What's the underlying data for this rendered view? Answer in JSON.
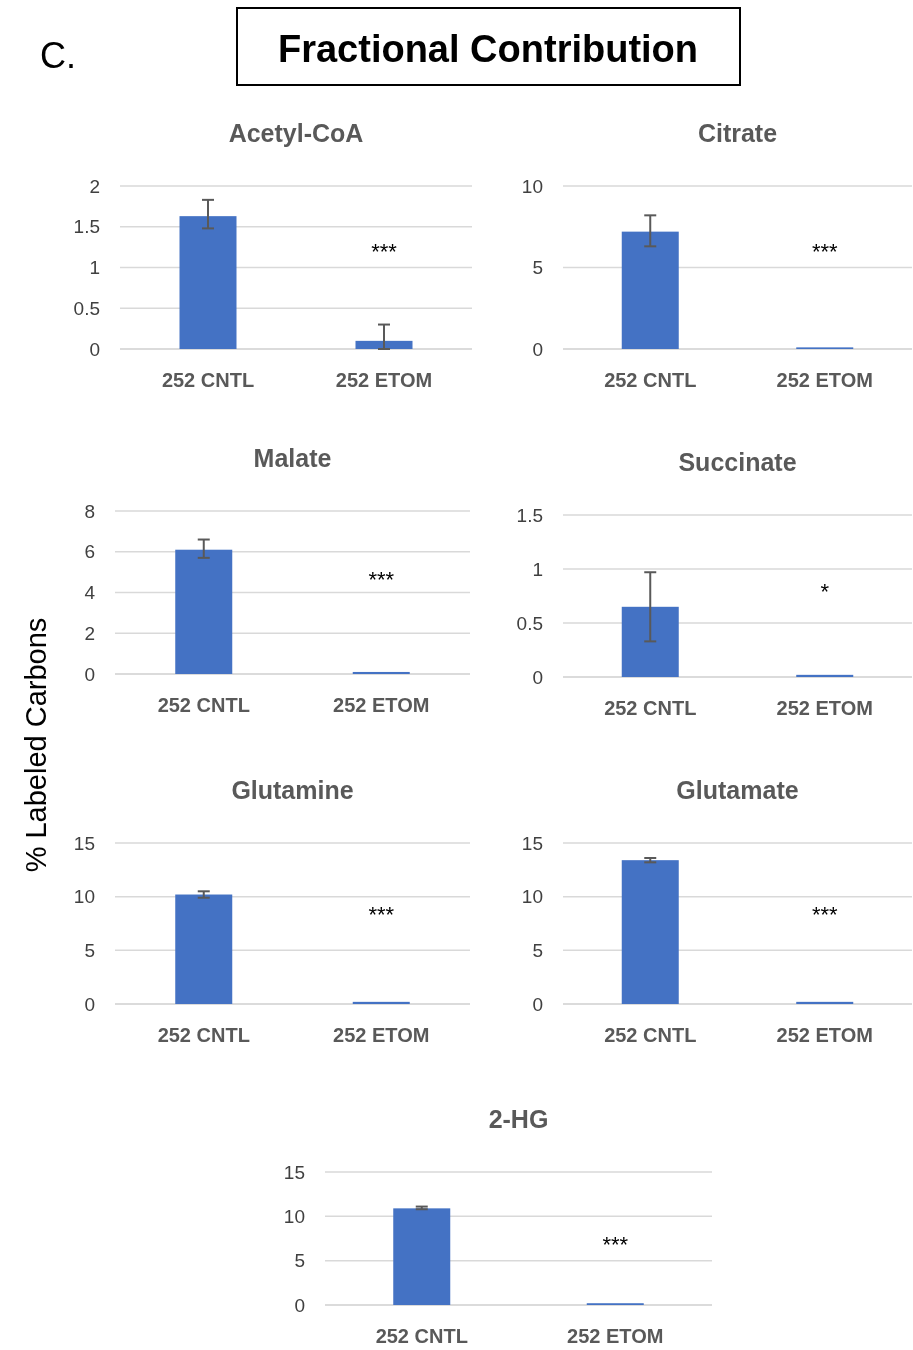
{
  "chart_data": [
    {
      "type": "other",
      "title": "Fractional Contribution",
      "annotations": [
        "C.",
        "% Labeled Carbons"
      ]
    },
    {
      "type": "bar",
      "title": "Acetyl-CoA",
      "categories": [
        "252 CNTL",
        "252 ETOM"
      ],
      "values": [
        1.63,
        0.1
      ],
      "errors": [
        [
          1.48,
          1.83
        ],
        [
          0,
          0.3
        ]
      ],
      "color": "#4472c4",
      "ylim": [
        0,
        2
      ],
      "yticks": [
        0,
        0.5,
        1,
        1.5,
        2
      ],
      "grid": "y",
      "annotations": [
        "***"
      ]
    },
    {
      "type": "bar",
      "title": "Citrate",
      "categories": [
        "252 CNTL",
        "252 ETOM"
      ],
      "values": [
        7.2,
        0.1
      ],
      "errors": [
        [
          6.3,
          8.2
        ],
        null
      ],
      "color": "#4472c4",
      "ylim": [
        0,
        10
      ],
      "yticks": [
        0,
        5,
        10
      ],
      "grid": "y",
      "annotations": [
        "***"
      ]
    },
    {
      "type": "bar",
      "title": "Malate",
      "categories": [
        "252 CNTL",
        "252 ETOM"
      ],
      "values": [
        6.1,
        0.1
      ],
      "errors": [
        [
          5.7,
          6.6
        ],
        null
      ],
      "color": "#4472c4",
      "ylim": [
        0,
        8
      ],
      "yticks": [
        0,
        2,
        4,
        6,
        8
      ],
      "grid": "y",
      "annotations": [
        "***"
      ]
    },
    {
      "type": "bar",
      "title": "Succinate",
      "categories": [
        "252 CNTL",
        "252 ETOM"
      ],
      "values": [
        0.65,
        0.02
      ],
      "errors": [
        [
          0.33,
          0.97
        ],
        null
      ],
      "color": "#4472c4",
      "ylim": [
        0,
        1.5
      ],
      "yticks": [
        0,
        0.5,
        1,
        1.5
      ],
      "grid": "y",
      "annotations": [
        "*"
      ]
    },
    {
      "type": "bar",
      "title": "Glutamine",
      "categories": [
        "252 CNTL",
        "252 ETOM"
      ],
      "values": [
        10.2,
        0.2
      ],
      "errors": [
        [
          9.9,
          10.5
        ],
        null
      ],
      "color": "#4472c4",
      "ylim": [
        0,
        15
      ],
      "yticks": [
        0,
        5,
        10,
        15
      ],
      "grid": "y",
      "annotations": [
        "***"
      ]
    },
    {
      "type": "bar",
      "title": "Glutamate",
      "categories": [
        "252 CNTL",
        "252 ETOM"
      ],
      "values": [
        13.4,
        0.2
      ],
      "errors": [
        [
          13.2,
          13.6
        ],
        null
      ],
      "color": "#4472c4",
      "ylim": [
        0,
        15
      ],
      "yticks": [
        0,
        5,
        10,
        15
      ],
      "grid": "y",
      "annotations": [
        "***"
      ]
    },
    {
      "type": "bar",
      "title": "2-HG",
      "categories": [
        "252 CNTL",
        "252 ETOM"
      ],
      "values": [
        10.9,
        0.2
      ],
      "errors": [
        [
          10.8,
          11.1
        ],
        null
      ],
      "color": "#4472c4",
      "ylim": [
        0,
        15
      ],
      "yticks": [
        0,
        5,
        10,
        15
      ],
      "grid": "y",
      "annotations": [
        "***"
      ]
    }
  ]
}
